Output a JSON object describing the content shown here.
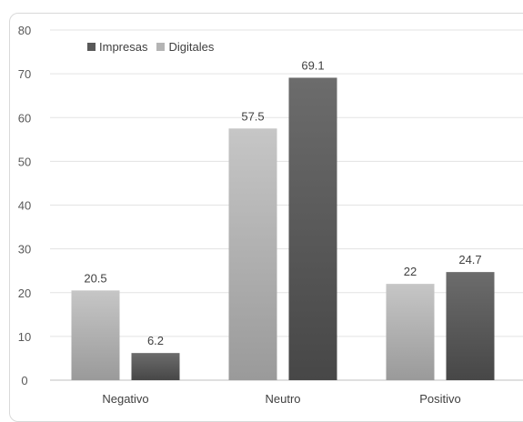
{
  "chart_data": {
    "type": "bar",
    "title": "",
    "xlabel": "",
    "ylabel": "",
    "categories": [
      "Negativo",
      "Neutro",
      "Positivo"
    ],
    "series": [
      {
        "name": "Digitales",
        "values": [
          20.5,
          57.5,
          22
        ],
        "color": "#b4b4b4"
      },
      {
        "name": "Impresas",
        "values": [
          6.2,
          69.1,
          24.7
        ],
        "color": "#595959"
      }
    ],
    "data_labels": [
      [
        "20.5",
        "57.5",
        "22"
      ],
      [
        "6.2",
        "69.1",
        "24.7"
      ]
    ],
    "ylim": [
      0,
      80
    ],
    "y_ticks": [
      "0",
      "10",
      "20",
      "30",
      "40",
      "50",
      "60",
      "70",
      "80"
    ],
    "legend": [
      {
        "label": "Impresas",
        "color": "#595959"
      },
      {
        "label": "Digitales",
        "color": "#b4b4b4"
      }
    ],
    "legend_position": "top-left",
    "grid": true
  }
}
